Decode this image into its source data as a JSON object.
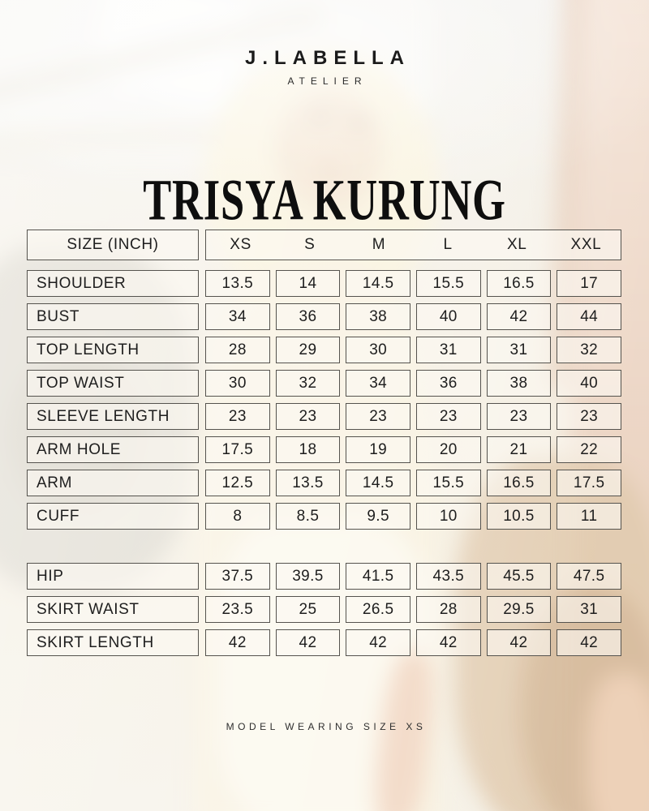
{
  "brand": {
    "name": "J.LABELLA",
    "sub": "ATELIER"
  },
  "title": "TRISYA KURUNG",
  "table": {
    "unit_header": "SIZE (INCH)",
    "sizes": [
      "XS",
      "S",
      "M",
      "L",
      "XL",
      "XXL"
    ],
    "rows_top": [
      {
        "label": "SHOULDER",
        "values": [
          "13.5",
          "14",
          "14.5",
          "15.5",
          "16.5",
          "17"
        ]
      },
      {
        "label": "BUST",
        "values": [
          "34",
          "36",
          "38",
          "40",
          "42",
          "44"
        ]
      },
      {
        "label": "TOP LENGTH",
        "values": [
          "28",
          "29",
          "30",
          "31",
          "31",
          "32"
        ]
      },
      {
        "label": "TOP WAIST",
        "values": [
          "30",
          "32",
          "34",
          "36",
          "38",
          "40"
        ]
      },
      {
        "label": "SLEEVE LENGTH",
        "values": [
          "23",
          "23",
          "23",
          "23",
          "23",
          "23"
        ]
      },
      {
        "label": "ARM HOLE",
        "values": [
          "17.5",
          "18",
          "19",
          "20",
          "21",
          "22"
        ]
      },
      {
        "label": "ARM",
        "values": [
          "12.5",
          "13.5",
          "14.5",
          "15.5",
          "16.5",
          "17.5"
        ]
      },
      {
        "label": "CUFF",
        "values": [
          "8",
          "8.5",
          "9.5",
          "10",
          "10.5",
          "11"
        ]
      }
    ],
    "rows_bottom": [
      {
        "label": "HIP",
        "values": [
          "37.5",
          "39.5",
          "41.5",
          "43.5",
          "45.5",
          "47.5"
        ]
      },
      {
        "label": "SKIRT WAIST",
        "values": [
          "23.5",
          "25",
          "26.5",
          "28",
          "29.5",
          "31"
        ]
      },
      {
        "label": "SKIRT LENGTH",
        "values": [
          "42",
          "42",
          "42",
          "42",
          "42",
          "42"
        ]
      }
    ]
  },
  "footer": {
    "note": "MODEL WEARING SIZE XS"
  },
  "colors": {
    "text": "#1e1e1e",
    "cell_border": "#55534e",
    "cell_bg": "#fbf9f2",
    "photo_cream": "#f7efdb",
    "photo_tan": "#e9d0bd"
  }
}
